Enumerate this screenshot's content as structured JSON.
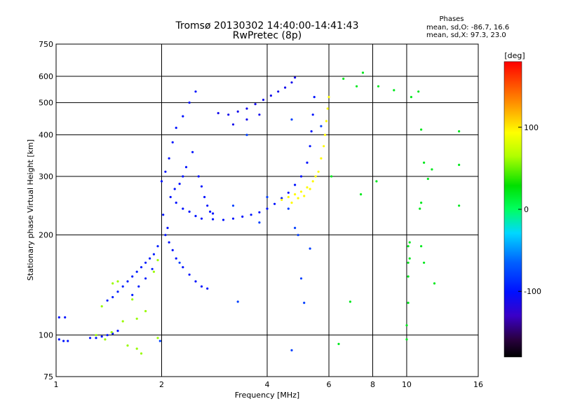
{
  "chart_data": {
    "type": "scatter",
    "title": "Tromsø 20130302 14:40:00-14:41:43",
    "subtitle": "RwPretec (8p)",
    "xlabel": "Frequency [MHz]",
    "ylabel": "Stationary phase Virtual Height [km]",
    "x_scale": "log",
    "y_scale": "log",
    "xlim": [
      1,
      16
    ],
    "ylim": [
      75,
      750
    ],
    "x_ticks": [
      1,
      2,
      4,
      6,
      8,
      10,
      16
    ],
    "x_tick_labels": [
      "1",
      "2",
      "4",
      "6",
      "8",
      "10",
      "16"
    ],
    "y_ticks": [
      75,
      100,
      200,
      300,
      400,
      500,
      600,
      750
    ],
    "y_tick_labels": [
      "75",
      "100",
      "200",
      "300",
      "400",
      "500",
      "600",
      "750"
    ],
    "grid": true,
    "phases_info": {
      "heading": "Phases",
      "line_o": "mean, sd,O: -86.7, 16.6",
      "line_x": "mean, sd,X:  97.3, 23.0"
    },
    "colorbar": {
      "label": "[deg]",
      "range": [
        -180,
        180
      ],
      "tick_values": [
        100,
        0,
        -100
      ],
      "tick_labels": [
        "100",
        "0",
        "-100"
      ]
    },
    "series": [
      {
        "trace": "low-layer-echoes",
        "color_deg": -100,
        "points": [
          [
            1.02,
            97
          ],
          [
            1.05,
            96
          ],
          [
            1.08,
            96
          ],
          [
            1.02,
            113
          ],
          [
            1.06,
            113
          ],
          [
            1.25,
            98
          ],
          [
            1.3,
            98
          ],
          [
            1.35,
            99
          ],
          [
            1.4,
            100
          ],
          [
            1.45,
            101
          ],
          [
            1.5,
            103
          ]
        ]
      },
      {
        "trace": "sparse-low-mixed",
        "color_deg": 60,
        "points": [
          [
            1.3,
            100
          ],
          [
            1.38,
            97
          ],
          [
            1.44,
            102
          ],
          [
            1.6,
            93
          ],
          [
            1.7,
            91
          ],
          [
            1.75,
            88
          ],
          [
            1.95,
            98
          ],
          [
            1.45,
            143
          ],
          [
            1.5,
            145
          ],
          [
            1.55,
            110
          ],
          [
            1.7,
            112
          ],
          [
            1.65,
            128
          ],
          [
            1.9,
            155
          ],
          [
            1.95,
            168
          ],
          [
            1.35,
            122
          ],
          [
            1.8,
            118
          ]
        ]
      },
      {
        "trace": "low-O-slope",
        "color_deg": -95,
        "points": [
          [
            1.4,
            127
          ],
          [
            1.45,
            130
          ],
          [
            1.5,
            135
          ],
          [
            1.55,
            140
          ],
          [
            1.6,
            145
          ],
          [
            1.65,
            150
          ],
          [
            1.7,
            155
          ],
          [
            1.75,
            160
          ],
          [
            1.8,
            165
          ],
          [
            1.85,
            170
          ],
          [
            1.9,
            175
          ],
          [
            1.95,
            185
          ],
          [
            1.65,
            132
          ],
          [
            1.72,
            140
          ],
          [
            1.8,
            148
          ],
          [
            1.88,
            158
          ]
        ]
      },
      {
        "trace": "O-cusp-cluster",
        "color_deg": -100,
        "points": [
          [
            2.0,
            290
          ],
          [
            2.05,
            310
          ],
          [
            2.1,
            340
          ],
          [
            2.15,
            380
          ],
          [
            2.2,
            420
          ],
          [
            2.3,
            455
          ],
          [
            2.4,
            500
          ],
          [
            2.5,
            540
          ],
          [
            2.02,
            230
          ],
          [
            2.08,
            210
          ],
          [
            2.12,
            260
          ],
          [
            2.18,
            275
          ],
          [
            2.25,
            285
          ],
          [
            2.3,
            300
          ],
          [
            2.35,
            320
          ],
          [
            2.45,
            355
          ],
          [
            2.55,
            300
          ],
          [
            2.6,
            280
          ],
          [
            2.65,
            260
          ],
          [
            2.7,
            245
          ],
          [
            2.75,
            235
          ],
          [
            2.8,
            232
          ],
          [
            2.05,
            200
          ],
          [
            2.1,
            190
          ],
          [
            2.15,
            180
          ],
          [
            2.2,
            170
          ],
          [
            2.3,
            160
          ],
          [
            2.4,
            152
          ],
          [
            2.5,
            145
          ],
          [
            2.6,
            140
          ],
          [
            2.7,
            138
          ],
          [
            2.2,
            250
          ],
          [
            2.3,
            240
          ],
          [
            2.4,
            235
          ],
          [
            2.5,
            228
          ],
          [
            2.6,
            224
          ]
        ]
      },
      {
        "trace": "O-trace-lower",
        "color_deg": -100,
        "points": [
          [
            2.8,
            223
          ],
          [
            3.0,
            222
          ],
          [
            3.2,
            224
          ],
          [
            3.4,
            227
          ],
          [
            3.6,
            230
          ],
          [
            3.8,
            234
          ],
          [
            4.0,
            240
          ],
          [
            4.2,
            248
          ],
          [
            4.4,
            258
          ],
          [
            4.6,
            268
          ],
          [
            4.8,
            283
          ],
          [
            5.0,
            300
          ],
          [
            5.2,
            330
          ],
          [
            5.3,
            370
          ],
          [
            5.35,
            410
          ],
          [
            5.4,
            460
          ],
          [
            5.45,
            520
          ]
        ]
      },
      {
        "trace": "O-trace-upper",
        "color_deg": -110,
        "points": [
          [
            2.9,
            465
          ],
          [
            3.1,
            460
          ],
          [
            3.3,
            470
          ],
          [
            3.5,
            480
          ],
          [
            3.7,
            495
          ],
          [
            3.9,
            510
          ],
          [
            4.1,
            525
          ],
          [
            4.3,
            540
          ],
          [
            4.5,
            555
          ],
          [
            4.7,
            575
          ],
          [
            4.8,
            595
          ],
          [
            3.2,
            430
          ],
          [
            3.5,
            445
          ],
          [
            3.8,
            460
          ]
        ]
      },
      {
        "trace": "X-trace",
        "color_deg": 95,
        "points": [
          [
            4.4,
            255
          ],
          [
            4.6,
            260
          ],
          [
            4.8,
            265
          ],
          [
            5.0,
            270
          ],
          [
            5.2,
            278
          ],
          [
            5.4,
            290
          ],
          [
            5.6,
            310
          ],
          [
            5.7,
            340
          ],
          [
            5.8,
            370
          ],
          [
            5.85,
            400
          ],
          [
            5.9,
            440
          ],
          [
            5.95,
            480
          ],
          [
            6.0,
            520
          ],
          [
            5.1,
            262
          ],
          [
            5.3,
            275
          ],
          [
            5.5,
            300
          ],
          [
            4.7,
            250
          ],
          [
            4.9,
            258
          ]
        ]
      },
      {
        "trace": "high-freq-scatter",
        "color_deg": 20,
        "points": [
          [
            6.6,
            590
          ],
          [
            7.2,
            560
          ],
          [
            7.5,
            615
          ],
          [
            8.3,
            560
          ],
          [
            9.2,
            545
          ],
          [
            10.3,
            520
          ],
          [
            10.8,
            540
          ],
          [
            11.0,
            415
          ],
          [
            11.2,
            330
          ],
          [
            11.8,
            315
          ],
          [
            11.5,
            295
          ],
          [
            11.0,
            250
          ],
          [
            10.9,
            240
          ],
          [
            14.1,
            410
          ],
          [
            14.1,
            325
          ],
          [
            14.1,
            245
          ],
          [
            10.2,
            190
          ],
          [
            10.1,
            185
          ],
          [
            10.2,
            170
          ],
          [
            10.1,
            165
          ],
          [
            10.1,
            150
          ],
          [
            10.1,
            125
          ],
          [
            10.0,
            107
          ],
          [
            10.0,
            97
          ],
          [
            11.0,
            185
          ],
          [
            11.2,
            165
          ],
          [
            12.0,
            143
          ],
          [
            7.4,
            265
          ],
          [
            8.2,
            290
          ],
          [
            6.9,
            126
          ],
          [
            6.4,
            94
          ],
          [
            6.1,
            300
          ]
        ]
      },
      {
        "trace": "misc-dots",
        "color_deg": -80,
        "points": [
          [
            3.5,
            400
          ],
          [
            3.3,
            126
          ],
          [
            4.7,
            445
          ],
          [
            4.9,
            200
          ],
          [
            5.3,
            182
          ],
          [
            5.0,
            148
          ],
          [
            5.1,
            125
          ],
          [
            4.6,
            240
          ],
          [
            3.8,
            218
          ],
          [
            3.2,
            245
          ],
          [
            4.0,
            260
          ],
          [
            4.8,
            210
          ],
          [
            2.25,
            165
          ],
          [
            1.98,
            96
          ],
          [
            4.7,
            90
          ],
          [
            5.7,
            425
          ]
        ]
      }
    ]
  }
}
